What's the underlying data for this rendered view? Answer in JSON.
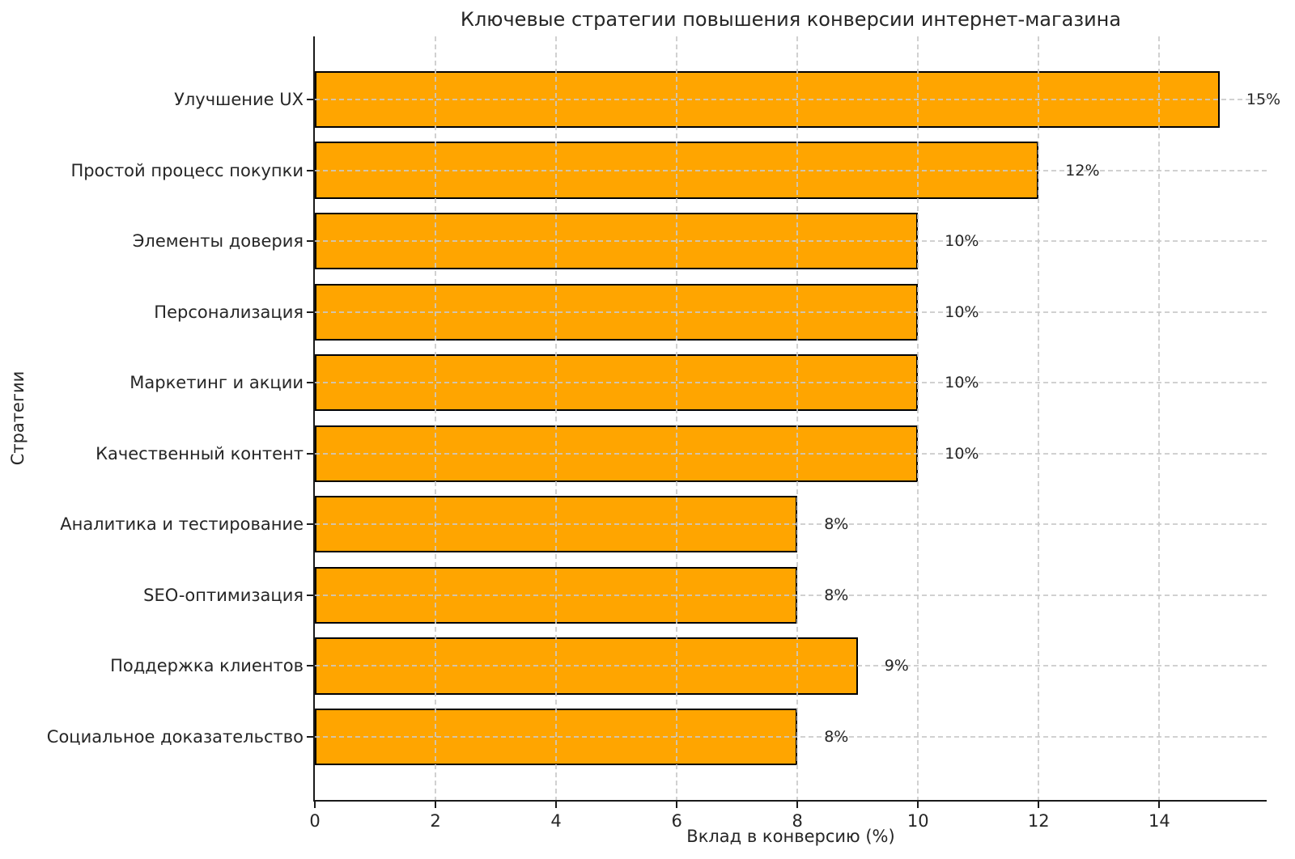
{
  "chart_data": {
    "type": "bar",
    "orientation": "horizontal",
    "title": "Ключевые стратегии повышения конверсии интернет-магазина",
    "xlabel": "Вклад в конверсию (%)",
    "ylabel": "Стратегии",
    "categories": [
      "Улучшение UX",
      "Простой процесс покупки",
      "Элементы доверия",
      "Персонализация",
      "Маркетинг и акции",
      "Качественный контент",
      "Аналитика и тестирование",
      "SEO-оптимизация",
      "Поддержка клиентов",
      "Социальное доказательство"
    ],
    "values": [
      15,
      12,
      10,
      10,
      10,
      10,
      8,
      8,
      9,
      8
    ],
    "value_labels": [
      "15%",
      "12%",
      "10%",
      "10%",
      "10%",
      "10%",
      "8%",
      "8%",
      "9%",
      "8%"
    ],
    "x_ticks": [
      0,
      2,
      4,
      6,
      8,
      10,
      12,
      14
    ],
    "xlim": [
      0,
      15.78
    ],
    "grid": "dashed",
    "legend": "none",
    "colors": {
      "bar_fill": "#FFA500",
      "bar_edge": "#000000",
      "grid_line": "#c9c9c9",
      "text": "#262626",
      "background": "#ffffff"
    }
  }
}
